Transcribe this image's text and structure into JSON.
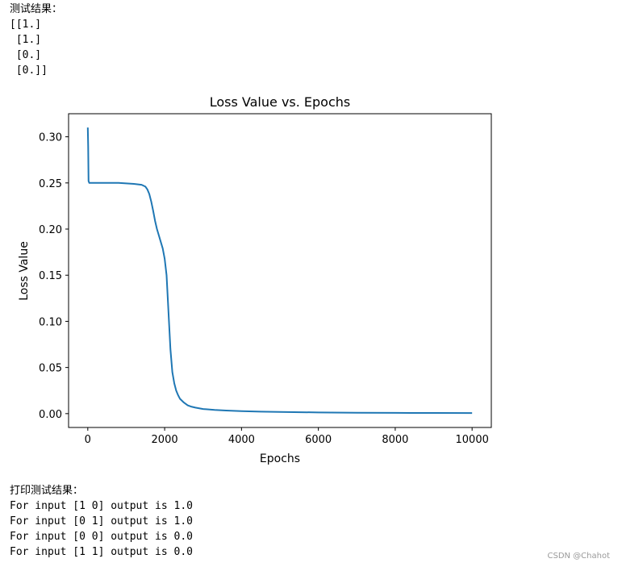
{
  "top_output": {
    "lines": [
      "测试结果：",
      "[[1.]",
      " [1.]",
      " [0.]",
      " [0.]]"
    ]
  },
  "bottom_output": {
    "lines": [
      "打印测试结果：",
      "For input [1 0] output is 1.0",
      "For input [0 1] output is 1.0",
      "For input [0 0] output is 0.0",
      "For input [1 1] output is 0.0"
    ]
  },
  "watermark": "CSDN @Chahot",
  "chart_data": {
    "type": "line",
    "title": "Loss Value vs. Epochs",
    "xlabel": "Epochs",
    "ylabel": "Loss Value",
    "xlim": [
      -500,
      10500
    ],
    "ylim": [
      -0.015,
      0.325
    ],
    "xticks": [
      0,
      2000,
      4000,
      6000,
      8000,
      10000
    ],
    "xtick_labels": [
      "0",
      "2000",
      "4000",
      "6000",
      "8000",
      "10000"
    ],
    "yticks": [
      0.0,
      0.05,
      0.1,
      0.15,
      0.2,
      0.25,
      0.3
    ],
    "ytick_labels": [
      "0.00",
      "0.05",
      "0.10",
      "0.15",
      "0.20",
      "0.25",
      "0.30"
    ],
    "grid": false,
    "line_color": "#1f77b4",
    "series": [
      {
        "x": [
          0,
          10,
          20,
          40,
          100,
          400,
          800,
          1200,
          1400,
          1500,
          1550,
          1600,
          1650,
          1700,
          1750,
          1800,
          1850,
          1900,
          1950,
          2000,
          2050,
          2100,
          2150,
          2200,
          2250,
          2300,
          2350,
          2400,
          2500,
          2600,
          2700,
          2800,
          3000,
          3300,
          3600,
          4000,
          4500,
          5000,
          6000,
          7000,
          8000,
          9000,
          10000
        ],
        "y": [
          0.31,
          0.29,
          0.252,
          0.25,
          0.25,
          0.25,
          0.25,
          0.249,
          0.248,
          0.246,
          0.243,
          0.238,
          0.23,
          0.22,
          0.209,
          0.2,
          0.193,
          0.186,
          0.179,
          0.168,
          0.15,
          0.11,
          0.07,
          0.045,
          0.033,
          0.025,
          0.02,
          0.016,
          0.012,
          0.009,
          0.0075,
          0.0065,
          0.005,
          0.004,
          0.0033,
          0.0027,
          0.0022,
          0.0018,
          0.0013,
          0.001,
          0.0008,
          0.0007,
          0.0006
        ]
      }
    ]
  }
}
